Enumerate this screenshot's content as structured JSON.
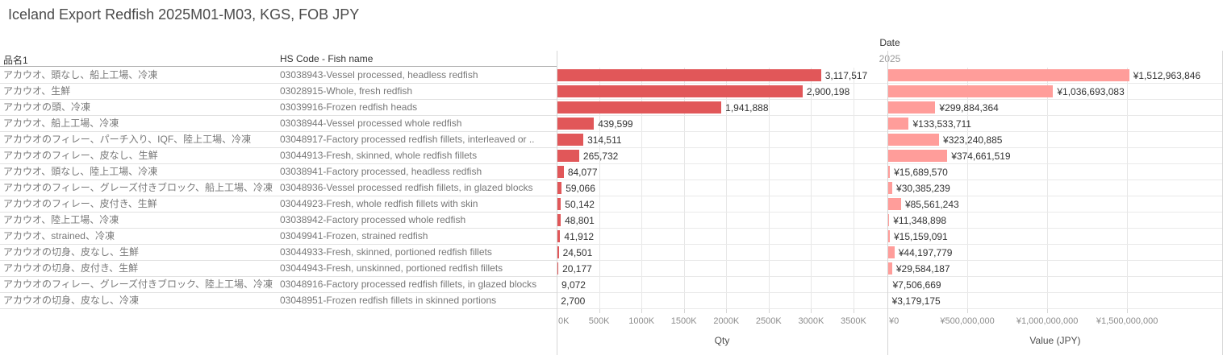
{
  "title": "Iceland Export Redfish 2025M01-M03, KGS, FOB JPY",
  "columns": {
    "name": "品名1",
    "hs": "HS Code - Fish name"
  },
  "date_header": {
    "label": "Date",
    "year": "2025"
  },
  "colors": {
    "qty_bar": "#e15759",
    "value_bar": "#ff9d9a",
    "header_text": "#333333",
    "row_text": "#787878",
    "axis_text": "#8c8c8c"
  },
  "chart_data": {
    "type": "bar",
    "orientation": "horizontal",
    "title": "Iceland Export Redfish 2025M01-M03, KGS, FOB JPY",
    "grid": true,
    "legend_position": "none",
    "categories": [
      "アカウオ、頭なし、船上工場、冷凍",
      "アカウオ、生鮮",
      "アカウオの頭、冷凍",
      "アカウオ、船上工場、冷凍",
      "アカウオのフィレー、パーチ入り、IQF、陸上工場、冷凍",
      "アカウオのフィレー、皮なし、生鮮",
      "アカウオ、頭なし、陸上工場、冷凍",
      "アカウオのフィレー、グレーズ付きブロック、船上工場、冷凍",
      "アカウオのフィレー、皮付き、生鮮",
      "アカウオ、陸上工場、冷凍",
      "アカウオ、strained、冷凍",
      "アカウオの切身、皮なし、生鮮",
      "アカウオの切身、皮付き、生鮮",
      "アカウオのフィレー、グレーズ付きブロック、陸上工場、冷凍",
      "アカウオの切身、皮なし、冷凍"
    ],
    "category_codes": [
      "03038943-Vessel processed, headless redfish",
      "03028915-Whole, fresh redfish",
      "03039916-Frozen redfish heads",
      "03038944-Vessel processed whole redfish",
      "03048917-Factory processed redfish fillets, interleaved or ..",
      "03044913-Fresh, skinned, whole redfish fillets",
      "03038941-Factory processed, headless redfish",
      "03048936-Vessel processed redfish fillets, in glazed blocks",
      "03044923-Fresh, whole redfish fillets with skin",
      "03038942-Factory processed whole redfish",
      "03049941-Frozen, strained redfish",
      "03044933-Fresh, skinned, portioned redfish fillets",
      "03044943-Fresh, unskinned, portioned redfish fillets",
      "03048916-Factory processed redfish fillets, in glazed blocks",
      "03048951-Frozen redfish fillets in skinned portions"
    ],
    "axes": [
      {
        "title": "Qty",
        "ticks": [
          "0K",
          "500K",
          "1000K",
          "1500K",
          "2000K",
          "2500K",
          "3000K",
          "3500K"
        ],
        "tick_values": [
          0,
          500000,
          1000000,
          1500000,
          2000000,
          2500000,
          3000000,
          3500000
        ],
        "max": 3900000
      },
      {
        "title": "Value (JPY)",
        "ticks": [
          "¥0",
          "¥500,000,000",
          "¥1,000,000,000",
          "¥1,500,000,000"
        ],
        "tick_values": [
          0,
          500000000,
          1000000000,
          1500000000
        ],
        "max": 2100000000
      }
    ],
    "series": [
      {
        "name": "Qty",
        "values": [
          3117517,
          2900198,
          1941888,
          439599,
          314511,
          265732,
          84077,
          59066,
          50142,
          48801,
          41912,
          24501,
          20177,
          9072,
          2700
        ],
        "display_labels": [
          "3,117,517",
          "2,900,198",
          "1,941,888",
          "439,599",
          "314,511",
          "265,732",
          "84,077",
          "59,066",
          "50,142",
          "48,801",
          "41,912",
          "24,501",
          "20,177",
          "9,072",
          "2,700"
        ]
      },
      {
        "name": "Value (JPY)",
        "values": [
          1512963846,
          1036693083,
          299884364,
          133533711,
          323240885,
          374661519,
          15689570,
          30385239,
          85561243,
          11348898,
          15159091,
          44197779,
          29584187,
          7506669,
          3179175
        ],
        "display_labels": [
          "¥1,512,963,846",
          "¥1,036,693,083",
          "¥299,884,364",
          "¥133,533,711",
          "¥323,240,885",
          "¥374,661,519",
          "¥15,689,570",
          "¥30,385,239",
          "¥85,561,243",
          "¥11,348,898",
          "¥15,159,091",
          "¥44,197,779",
          "¥29,584,187",
          "¥7,506,669",
          "¥3,179,175"
        ]
      }
    ]
  }
}
